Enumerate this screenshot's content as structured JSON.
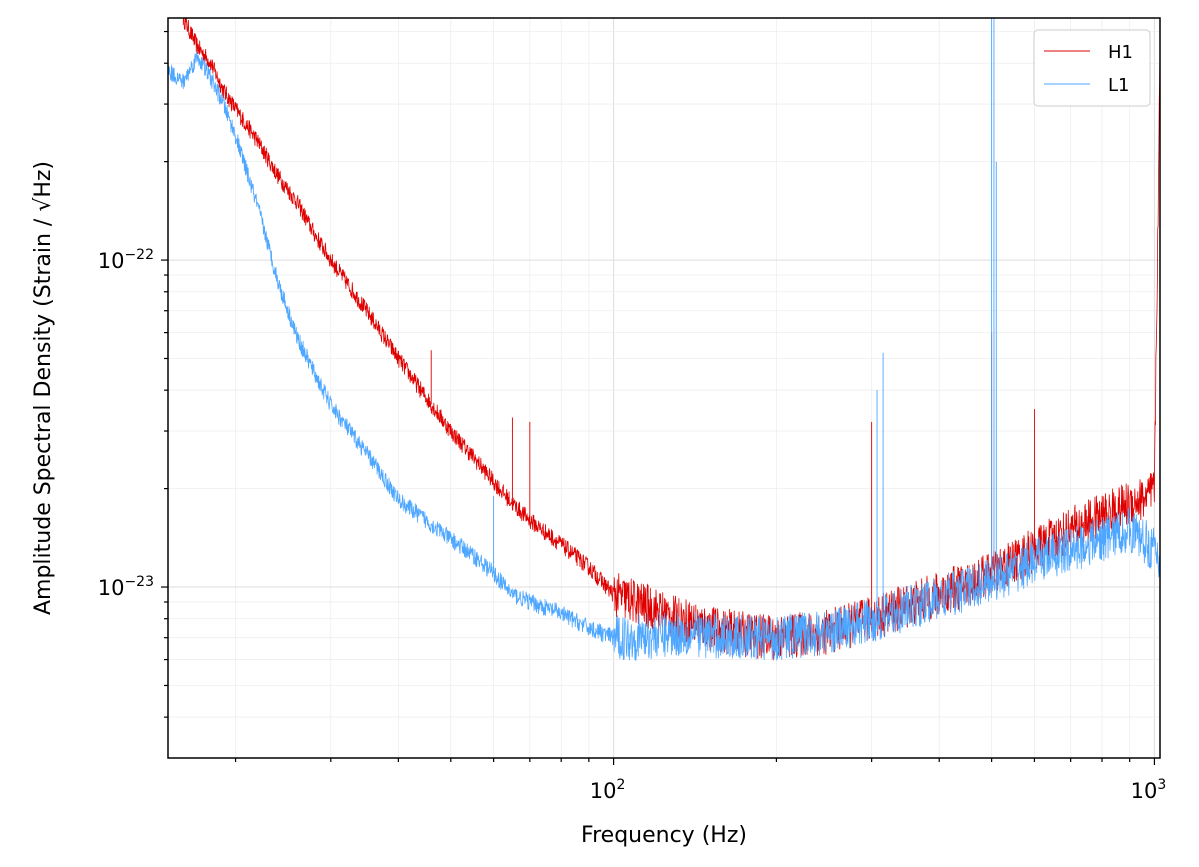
{
  "chart_data": {
    "type": "line",
    "title": "",
    "xlabel": "Frequency (Hz)",
    "ylabel": "Amplitude Spectral Density (Strain / √Hz)",
    "xscale": "log",
    "yscale": "log",
    "xlim": [
      15,
      1024
    ],
    "ylim": [
      3e-24,
      5.5e-22
    ],
    "grid": true,
    "legend": "top-right",
    "x_ticks": [
      {
        "value": 100,
        "label_base": "10",
        "label_exp": "2"
      },
      {
        "value": 1000,
        "label_base": "10",
        "label_exp": "3"
      }
    ],
    "y_ticks": [
      {
        "value": 1e-23,
        "label_base": "10",
        "label_exp": "−23"
      },
      {
        "value": 1e-22,
        "label_base": "10",
        "label_exp": "−22"
      }
    ],
    "series": [
      {
        "name": "H1",
        "color": "#e00000",
        "x": [
          16,
          17,
          18,
          19,
          20,
          22,
          24,
          26,
          28,
          30,
          33,
          36,
          40,
          45,
          50,
          55,
          60,
          65,
          70,
          80,
          90,
          100,
          110,
          120,
          130,
          140,
          150,
          170,
          200,
          250,
          300,
          350,
          400,
          450,
          500,
          550,
          600,
          650,
          700,
          800,
          900,
          980,
          1000,
          1024
        ],
        "y": [
          5.5e-22,
          4.5e-22,
          4e-22,
          3.3e-22,
          2.9e-22,
          2.3e-22,
          1.8e-22,
          1.5e-22,
          1.2e-22,
          1e-22,
          8e-23,
          6.5e-23,
          5e-23,
          3.8e-23,
          3e-23,
          2.5e-23,
          2.1e-23,
          1.8e-23,
          1.6e-23,
          1.35e-23,
          1.15e-23,
          9.5e-24,
          9e-24,
          8.5e-24,
          8e-24,
          7.8e-24,
          7.5e-24,
          7.2e-24,
          7e-24,
          7.3e-24,
          8e-24,
          8.8e-24,
          9.5e-24,
          1.02e-23,
          1.1e-23,
          1.2e-23,
          1.3e-23,
          1.4e-23,
          1.5e-23,
          1.65e-23,
          1.8e-23,
          1.9e-23,
          2e-23,
          4e-22
        ]
      },
      {
        "name": "L1",
        "color": "#4da6ff",
        "x": [
          15,
          16,
          17,
          18,
          19,
          20,
          22,
          24,
          26,
          28,
          30,
          33,
          36,
          40,
          45,
          50,
          55,
          60,
          65,
          70,
          80,
          90,
          100,
          110,
          120,
          130,
          140,
          150,
          170,
          200,
          250,
          300,
          350,
          400,
          450,
          500,
          550,
          600,
          700,
          800,
          900,
          1000,
          1024
        ],
        "y": [
          3.8e-22,
          3.5e-22,
          4.2e-22,
          3.6e-22,
          3e-22,
          2.4e-22,
          1.45e-22,
          8.5e-23,
          5.8e-23,
          4.5e-23,
          3.6e-23,
          2.9e-23,
          2.4e-23,
          1.85e-23,
          1.6e-23,
          1.4e-23,
          1.25e-23,
          1.1e-23,
          9.5e-24,
          9e-24,
          8.3e-24,
          7.5e-24,
          7e-24,
          7e-24,
          7.1e-24,
          7.2e-24,
          7.2e-24,
          7.1e-24,
          7e-24,
          7e-24,
          7.3e-24,
          7.9e-24,
          8.6e-24,
          9.2e-24,
          9.9e-24,
          1.05e-23,
          1.12e-23,
          1.2e-23,
          1.3e-23,
          1.4e-23,
          1.5e-23,
          1.3e-23,
          1.15e-23
        ]
      }
    ],
    "annotations": [
      {
        "series": "H1",
        "x": 46,
        "y": 5.3e-23
      },
      {
        "series": "H1",
        "x": 65,
        "y": 3.3e-23
      },
      {
        "series": "H1",
        "x": 70,
        "y": 3.2e-23
      },
      {
        "series": "H1",
        "x": 300,
        "y": 3.2e-23
      },
      {
        "series": "H1",
        "x": 500,
        "y": 6e-23
      },
      {
        "series": "H1",
        "x": 600,
        "y": 3.5e-23
      },
      {
        "series": "L1",
        "x": 60,
        "y": 1.9e-23
      },
      {
        "series": "L1",
        "x": 307,
        "y": 4e-23
      },
      {
        "series": "L1",
        "x": 315,
        "y": 5.2e-23
      },
      {
        "series": "L1",
        "x": 500,
        "y": 5.5e-22
      },
      {
        "series": "L1",
        "x": 505,
        "y": 5.5e-22
      },
      {
        "series": "L1",
        "x": 510,
        "y": 2e-22
      }
    ]
  }
}
